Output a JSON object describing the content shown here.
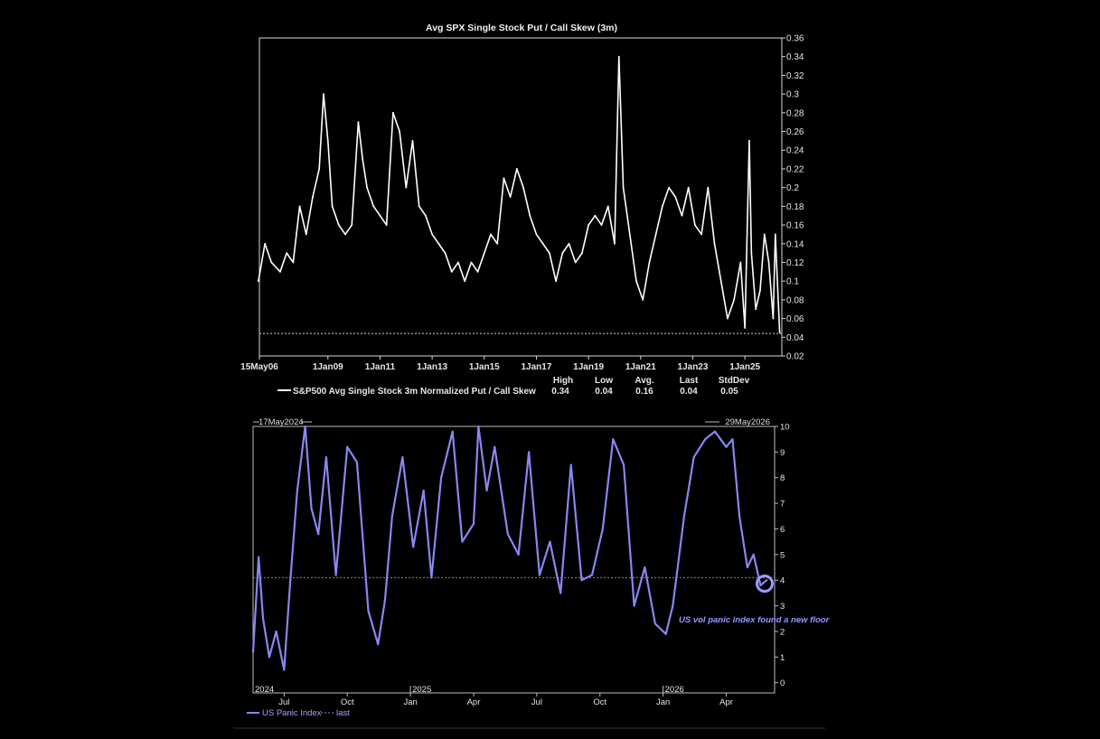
{
  "chart_data": [
    {
      "type": "line",
      "title": "Avg SPX Single Stock Put / Call Skew (3m)",
      "x_tick_labels": [
        "15May06",
        "1Jan09",
        "1Jan11",
        "1Jan13",
        "1Jan15",
        "1Jan17",
        "1Jan19",
        "1Jan21",
        "1Jan23",
        "1Jan25"
      ],
      "y_ticks": [
        0.02,
        0.04,
        0.06,
        0.08,
        0.1,
        0.12,
        0.14,
        0.16,
        0.18,
        0.2,
        0.22,
        0.24,
        0.26,
        0.28,
        0.3,
        0.32,
        0.34,
        0.36
      ],
      "ylim": [
        0.02,
        0.36
      ],
      "reference_line": {
        "value": 0.044,
        "style": "dotted"
      },
      "series": [
        {
          "name": "S&P500 Avg Single Stock 3m Normalized Put / Call Skew",
          "color": "#ffffff",
          "x": [
            "2006-05",
            "2006-08",
            "2006-11",
            "2007-03",
            "2007-06",
            "2007-09",
            "2007-12",
            "2008-03",
            "2008-06",
            "2008-09",
            "2008-11",
            "2009-01",
            "2009-03",
            "2009-06",
            "2009-09",
            "2009-12",
            "2010-03",
            "2010-05",
            "2010-07",
            "2010-10",
            "2011-01",
            "2011-04",
            "2011-07",
            "2011-10",
            "2012-01",
            "2012-04",
            "2012-07",
            "2012-10",
            "2013-01",
            "2013-04",
            "2013-07",
            "2013-10",
            "2014-01",
            "2014-04",
            "2014-07",
            "2014-10",
            "2015-01",
            "2015-04",
            "2015-07",
            "2015-10",
            "2016-01",
            "2016-04",
            "2016-07",
            "2016-10",
            "2017-01",
            "2017-04",
            "2017-07",
            "2017-10",
            "2018-01",
            "2018-04",
            "2018-07",
            "2018-10",
            "2019-01",
            "2019-04",
            "2019-07",
            "2019-10",
            "2020-01",
            "2020-03",
            "2020-05",
            "2020-08",
            "2020-11",
            "2021-02",
            "2021-05",
            "2021-08",
            "2021-11",
            "2022-02",
            "2022-05",
            "2022-08",
            "2022-11",
            "2023-02",
            "2023-05",
            "2023-08",
            "2023-11",
            "2024-02",
            "2024-05",
            "2024-08",
            "2024-11",
            "2025-01",
            "2025-03",
            "2025-04",
            "2025-06",
            "2025-08",
            "2025-10",
            "2025-12",
            "2026-02",
            "2026-03",
            "2026-05"
          ],
          "values": [
            0.1,
            0.14,
            0.12,
            0.11,
            0.13,
            0.12,
            0.18,
            0.15,
            0.19,
            0.22,
            0.3,
            0.25,
            0.18,
            0.16,
            0.15,
            0.16,
            0.27,
            0.23,
            0.2,
            0.18,
            0.17,
            0.16,
            0.28,
            0.26,
            0.2,
            0.25,
            0.18,
            0.17,
            0.15,
            0.14,
            0.13,
            0.11,
            0.12,
            0.1,
            0.12,
            0.11,
            0.13,
            0.15,
            0.14,
            0.21,
            0.19,
            0.22,
            0.2,
            0.17,
            0.15,
            0.14,
            0.13,
            0.1,
            0.13,
            0.14,
            0.12,
            0.13,
            0.16,
            0.17,
            0.16,
            0.18,
            0.14,
            0.34,
            0.2,
            0.15,
            0.1,
            0.08,
            0.12,
            0.15,
            0.18,
            0.2,
            0.19,
            0.17,
            0.2,
            0.16,
            0.15,
            0.2,
            0.14,
            0.1,
            0.06,
            0.08,
            0.12,
            0.05,
            0.25,
            0.13,
            0.07,
            0.09,
            0.15,
            0.12,
            0.06,
            0.15,
            0.045
          ]
        }
      ],
      "stats": {
        "headers": [
          "High",
          "Low",
          "Avg.",
          "Last",
          "StdDev"
        ],
        "values": [
          "0.34",
          "0.04",
          "0.16",
          "0.04",
          "0.05"
        ]
      }
    },
    {
      "type": "line",
      "title": "",
      "x_range_labels": {
        "start": "17May2024",
        "end": "29May2026"
      },
      "x_tick_labels": [
        "Jul",
        "Oct",
        "Jan",
        "Apr",
        "Jul",
        "Oct",
        "Jan",
        "Apr"
      ],
      "year_labels": [
        "2024",
        "2025",
        "2026"
      ],
      "y_ticks": [
        0,
        1,
        2,
        3,
        4,
        5,
        6,
        7,
        8,
        9,
        10
      ],
      "ylim": [
        -0.4,
        10
      ],
      "reference_line": {
        "value": 4.1,
        "style": "dotted"
      },
      "annotation": "US vol panic index found a new floor",
      "series": [
        {
          "name": "US Panic Index",
          "color": "#8a86f0",
          "x": [
            "2024-05-17",
            "2024-05-25",
            "2024-06-01",
            "2024-06-10",
            "2024-06-20",
            "2024-07-01",
            "2024-07-10",
            "2024-07-20",
            "2024-08-01",
            "2024-08-10",
            "2024-08-20",
            "2024-09-01",
            "2024-09-15",
            "2024-10-01",
            "2024-10-15",
            "2024-11-01",
            "2024-11-15",
            "2024-11-25",
            "2024-12-05",
            "2024-12-20",
            "2025-01-05",
            "2025-01-20",
            "2025-02-01",
            "2025-02-15",
            "2025-03-01",
            "2025-03-15",
            "2025-04-01",
            "2025-04-08",
            "2025-04-20",
            "2025-05-01",
            "2025-05-20",
            "2025-06-05",
            "2025-06-20",
            "2025-07-05",
            "2025-07-20",
            "2025-08-05",
            "2025-08-20",
            "2025-09-05",
            "2025-09-20",
            "2025-10-05",
            "2025-10-20",
            "2025-11-05",
            "2025-11-20",
            "2025-12-05",
            "2025-12-20",
            "2026-01-05",
            "2026-01-15",
            "2026-02-01",
            "2026-02-15",
            "2026-03-01",
            "2026-03-15",
            "2026-04-01",
            "2026-04-10",
            "2026-04-20",
            "2026-05-01",
            "2026-05-10",
            "2026-05-20",
            "2026-05-29"
          ],
          "values": [
            1.2,
            4.9,
            2.5,
            1.0,
            2.0,
            0.5,
            4.0,
            7.5,
            10.0,
            6.8,
            5.8,
            8.8,
            4.2,
            9.2,
            8.6,
            2.8,
            1.5,
            3.2,
            6.5,
            8.8,
            5.3,
            7.5,
            4.1,
            8.0,
            9.8,
            5.5,
            6.2,
            10.0,
            7.5,
            9.2,
            5.8,
            5.0,
            9.0,
            4.2,
            5.5,
            3.5,
            8.5,
            4.0,
            4.2,
            6.0,
            9.5,
            8.5,
            3.0,
            4.5,
            2.3,
            1.9,
            3.0,
            6.5,
            8.8,
            9.5,
            9.8,
            9.2,
            9.5,
            6.5,
            4.5,
            5.0,
            3.8,
            4.0
          ]
        },
        {
          "name": "last",
          "color": "#8a86f0",
          "style": "dotted"
        }
      ]
    }
  ]
}
